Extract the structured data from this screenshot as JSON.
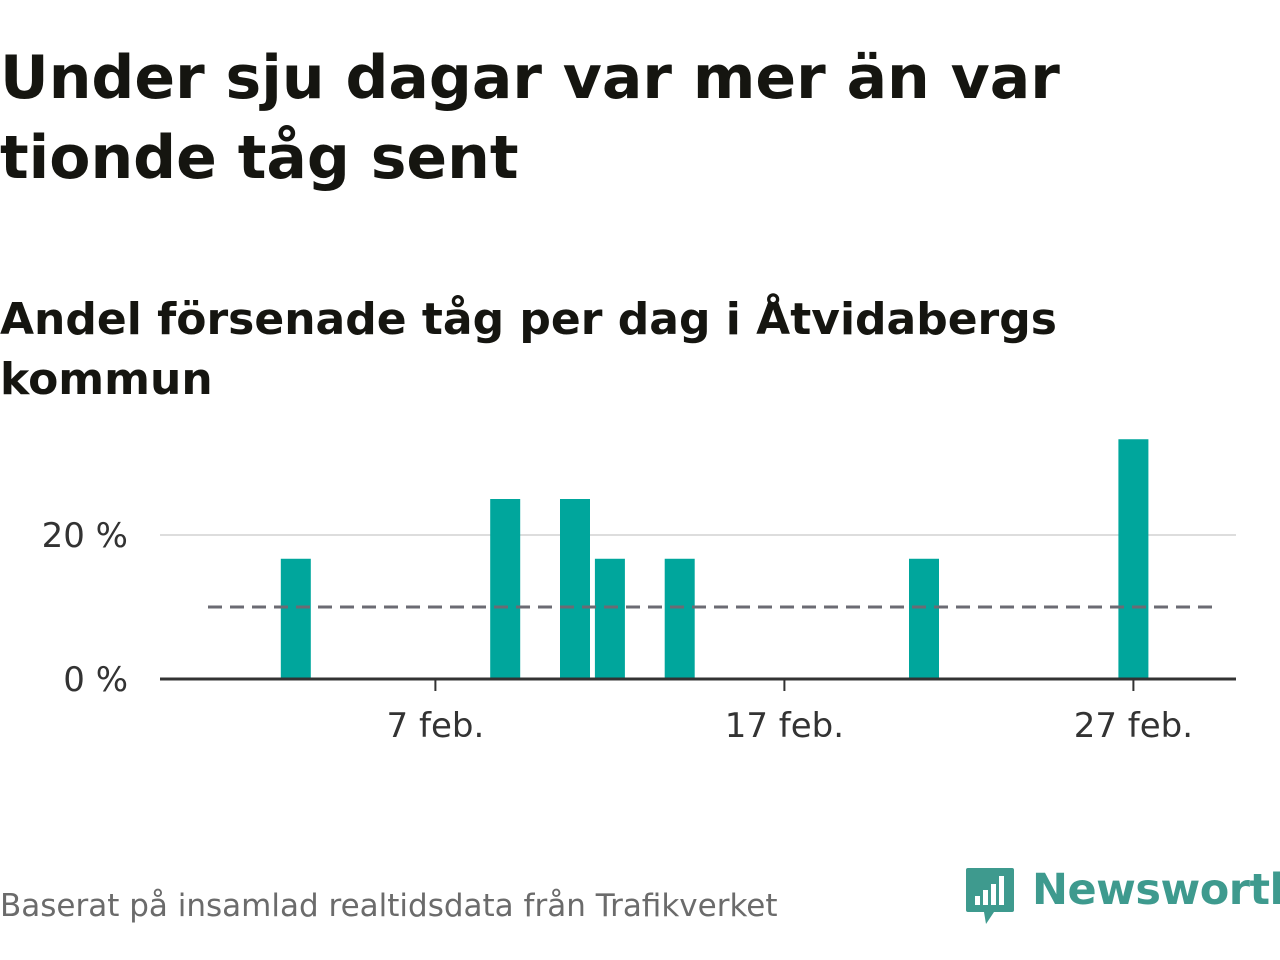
{
  "title": "Under sju dagar var mer än var tionde tåg sent",
  "subtitle": "Andel försenade tåg per dag i Åtvidabergs kommun",
  "source": "Baserat på insamlad realtidsdata från Trafikverket",
  "logo": {
    "text": "Newsworthy",
    "icon": "bar-chart-speech-bubble-icon"
  },
  "colors": {
    "bar": "#00a69c",
    "reference": "#6b6b73",
    "grid": "#dddddd",
    "axis": "#333333",
    "logo": "#3e9a8e"
  },
  "chart_data": {
    "type": "bar",
    "x": [
      "2024-02-01",
      "2024-02-02",
      "2024-02-03",
      "2024-02-04",
      "2024-02-05",
      "2024-02-06",
      "2024-02-07",
      "2024-02-08",
      "2024-02-09",
      "2024-02-10",
      "2024-02-11",
      "2024-02-12",
      "2024-02-13",
      "2024-02-14",
      "2024-02-15",
      "2024-02-16",
      "2024-02-17",
      "2024-02-18",
      "2024-02-19",
      "2024-02-20",
      "2024-02-21",
      "2024-02-22",
      "2024-02-23",
      "2024-02-24",
      "2024-02-25",
      "2024-02-26",
      "2024-02-27",
      "2024-02-28",
      "2024-02-29"
    ],
    "values": [
      0,
      0,
      16.7,
      0,
      0,
      0,
      0,
      0,
      25,
      0,
      25,
      16.7,
      0,
      16.7,
      0,
      0,
      0,
      0,
      0,
      0,
      16.7,
      0,
      0,
      0,
      0,
      0,
      33.3,
      0,
      0
    ],
    "reference_line": {
      "value": 10,
      "style": "dashed"
    },
    "x_ticks": [
      {
        "date": "2024-02-07",
        "label": "7 feb."
      },
      {
        "date": "2024-02-17",
        "label": "17 feb."
      },
      {
        "date": "2024-02-27",
        "label": "27 feb."
      }
    ],
    "y_ticks": [
      {
        "value": 0,
        "label": "0 %"
      },
      {
        "value": 20,
        "label": "20 %"
      }
    ],
    "ylim": [
      0,
      36
    ],
    "grid": true,
    "legend": "none"
  }
}
